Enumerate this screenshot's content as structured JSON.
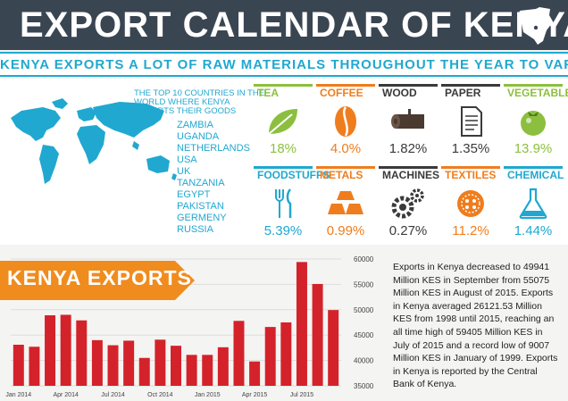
{
  "header": {
    "title": "EXPORT CALENDAR OF KENYA"
  },
  "subtitle": "KENYA EXPORTS A LOT OF RAW MATERIALS THROUGHOUT THE YEAR TO VARIOUS COUNTRIES",
  "countries": {
    "heading": "THE TOP 10 COUNTRIES IN THE WORLD WHERE KENYA EXPORTS THEIR GOODS",
    "list": [
      "ZAMBIA",
      "UGANDA",
      "NETHERLANDS",
      "USA",
      "UK",
      "TANZANIA",
      "EGYPT",
      "PAKISTAN",
      "GERMENY",
      "RUSSIA"
    ]
  },
  "products": [
    {
      "label": "TEA",
      "value": "18%",
      "color": "#8cbf3f",
      "icon": "tea-leaf-icon"
    },
    {
      "label": "COFFEE",
      "value": "4.0%",
      "color": "#ef7d1e",
      "icon": "coffee-bean-icon"
    },
    {
      "label": "WOOD",
      "value": "1.82%",
      "color": "#3a3a3a",
      "icon": "wood-log-icon"
    },
    {
      "label": "PAPER",
      "value": "1.35%",
      "color": "#3a3a3a",
      "icon": "paper-document-icon"
    },
    {
      "label": "VEGETABLE",
      "value": "13.9%",
      "color": "#8cbf3f",
      "icon": "tomato-icon"
    },
    {
      "label": "FOODSTUFFS",
      "value": "5.39%",
      "color": "#20a8d0",
      "icon": "cutlery-icon"
    },
    {
      "label": "METALS",
      "value": "0.99%",
      "color": "#ef7d1e",
      "icon": "metal-bars-icon"
    },
    {
      "label": "MACHINES",
      "value": "0.27%",
      "color": "#3a3a3a",
      "icon": "gears-icon"
    },
    {
      "label": "TEXTILES",
      "value": "11.2%",
      "color": "#ef7d1e",
      "icon": "button-icon"
    },
    {
      "label": "CHEMICAL",
      "value": "1.44%",
      "color": "#20a8d0",
      "icon": "flask-icon"
    }
  ],
  "banner": {
    "text": "KENYA EXPORTS"
  },
  "chart_data": {
    "type": "bar",
    "ylim": [
      35000,
      60000
    ],
    "y_ticks": [
      "60000",
      "55000",
      "50000",
      "45000",
      "40000",
      "35000"
    ],
    "x_tick_labels": [
      "Jan 2014",
      "Apr 2014",
      "Jul 2014",
      "Oct 2014",
      "Jan 2015",
      "Apr 2015",
      "Jul 2015"
    ],
    "values": [
      43100,
      42700,
      48900,
      49000,
      47900,
      44000,
      43000,
      43900,
      40500,
      44100,
      42900,
      41100,
      41100,
      42600,
      47800,
      39800,
      46600,
      47500,
      59405,
      55075,
      49941
    ],
    "bar_color": "#d4222b"
  },
  "description": "Exports in Kenya decreased to 49941 Million KES in September from 55075 Million KES in August of 2015. Exports in Kenya averaged 26121.53 Million KES from 1998 until 2015, reaching an all time high of 59405 Million KES in July of 2015 and a record low of 9007 Million KES in January of 1999. Exports in Kenya is reported by the  Central Bank of Kenya."
}
